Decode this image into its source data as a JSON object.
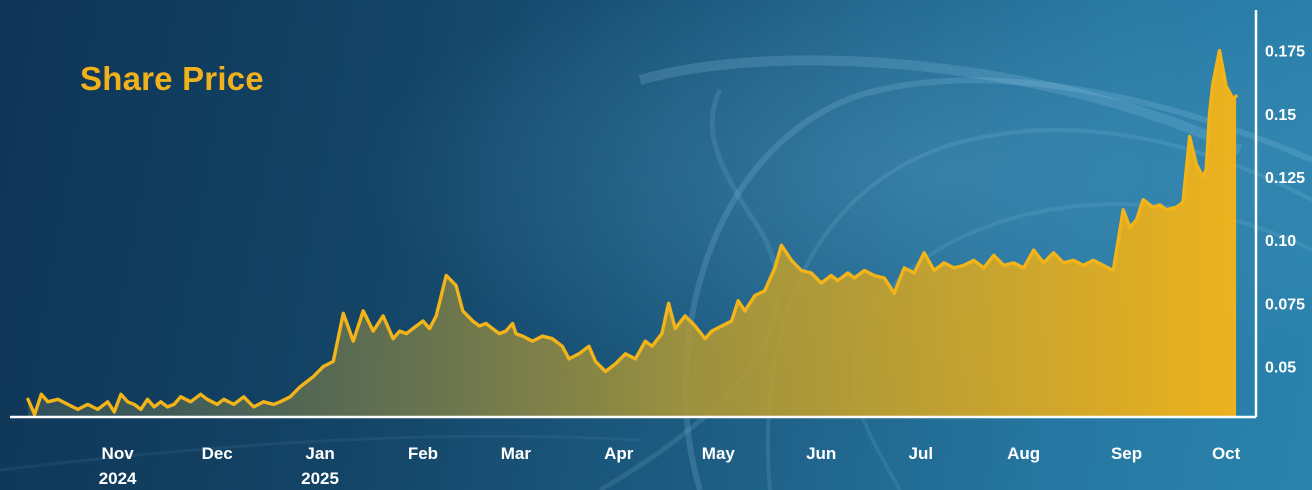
{
  "chart_data": {
    "type": "area",
    "title": "Share Price",
    "xlabel": "",
    "ylabel": "",
    "ylim": [
      0.03,
      0.18
    ],
    "xlim": [
      "2024-10-05",
      "2025-10-10"
    ],
    "y_ticks": [
      {
        "value": 0.05,
        "label": "0.05"
      },
      {
        "value": 0.075,
        "label": "0.075"
      },
      {
        "value": 0.1,
        "label": "0.10"
      },
      {
        "value": 0.125,
        "label": "0.125"
      },
      {
        "value": 0.15,
        "label": "0.15"
      },
      {
        "value": 0.175,
        "label": "0.175"
      }
    ],
    "x_ticks": [
      {
        "date": "2024-11-01",
        "label": "Nov",
        "sublabel": "2024"
      },
      {
        "date": "2024-12-01",
        "label": "Dec",
        "sublabel": ""
      },
      {
        "date": "2025-01-01",
        "label": "Jan",
        "sublabel": "2025"
      },
      {
        "date": "2025-02-01",
        "label": "Feb",
        "sublabel": ""
      },
      {
        "date": "2025-03-01",
        "label": "Mar",
        "sublabel": ""
      },
      {
        "date": "2025-04-01",
        "label": "Apr",
        "sublabel": ""
      },
      {
        "date": "2025-05-01",
        "label": "May",
        "sublabel": ""
      },
      {
        "date": "2025-06-01",
        "label": "Jun",
        "sublabel": ""
      },
      {
        "date": "2025-07-01",
        "label": "Jul",
        "sublabel": ""
      },
      {
        "date": "2025-08-01",
        "label": "Aug",
        "sublabel": ""
      },
      {
        "date": "2025-09-01",
        "label": "Sep",
        "sublabel": ""
      },
      {
        "date": "2025-10-01",
        "label": "Oct",
        "sublabel": ""
      }
    ],
    "grid": false,
    "legend": "none",
    "colors": {
      "line": "#f2b419",
      "fill_start": "#46625e",
      "fill_end": "#f2b319",
      "title": "#f0b21c",
      "axis": "#ffffff",
      "background_start": "#0f3556",
      "background_end": "#2a84ae"
    },
    "series": [
      {
        "x": [
          "2024-10-05",
          "2024-10-07",
          "2024-10-09",
          "2024-10-11",
          "2024-10-14",
          "2024-10-17",
          "2024-10-20",
          "2024-10-23",
          "2024-10-26",
          "2024-10-29",
          "2024-10-31",
          "2024-11-02",
          "2024-11-04",
          "2024-11-06",
          "2024-11-08",
          "2024-11-10",
          "2024-11-12",
          "2024-11-14",
          "2024-11-16",
          "2024-11-18",
          "2024-11-20",
          "2024-11-23",
          "2024-11-26",
          "2024-11-28",
          "2024-12-01",
          "2024-12-03",
          "2024-12-06",
          "2024-12-09",
          "2024-12-12",
          "2024-12-15",
          "2024-12-18",
          "2024-12-20",
          "2024-12-23",
          "2024-12-26",
          "2024-12-28",
          "2024-12-30",
          "2025-01-02",
          "2025-01-05",
          "2025-01-08",
          "2025-01-11",
          "2025-01-14",
          "2025-01-17",
          "2025-01-20",
          "2025-01-23",
          "2025-01-25",
          "2025-01-27",
          "2025-01-30",
          "2025-02-01",
          "2025-02-03",
          "2025-02-05",
          "2025-02-08",
          "2025-02-11",
          "2025-02-13",
          "2025-02-16",
          "2025-02-18",
          "2025-02-20",
          "2025-02-22",
          "2025-02-24",
          "2025-02-26",
          "2025-02-28",
          "2025-03-01",
          "2025-03-03",
          "2025-03-06",
          "2025-03-09",
          "2025-03-12",
          "2025-03-15",
          "2025-03-17",
          "2025-03-20",
          "2025-03-23",
          "2025-03-25",
          "2025-03-28",
          "2025-03-31",
          "2025-04-03",
          "2025-04-06",
          "2025-04-09",
          "2025-04-11",
          "2025-04-14",
          "2025-04-16",
          "2025-04-18",
          "2025-04-21",
          "2025-04-24",
          "2025-04-27",
          "2025-04-29",
          "2025-05-02",
          "2025-05-05",
          "2025-05-07",
          "2025-05-09",
          "2025-05-12",
          "2025-05-15",
          "2025-05-18",
          "2025-05-20",
          "2025-05-23",
          "2025-05-26",
          "2025-05-29",
          "2025-06-01",
          "2025-06-04",
          "2025-06-06",
          "2025-06-09",
          "2025-06-11",
          "2025-06-14",
          "2025-06-17",
          "2025-06-20",
          "2025-06-23",
          "2025-06-26",
          "2025-06-29",
          "2025-07-02",
          "2025-07-05",
          "2025-07-08",
          "2025-07-11",
          "2025-07-14",
          "2025-07-17",
          "2025-07-20",
          "2025-07-23",
          "2025-07-26",
          "2025-07-29",
          "2025-08-01",
          "2025-08-04",
          "2025-08-07",
          "2025-08-10",
          "2025-08-13",
          "2025-08-16",
          "2025-08-19",
          "2025-08-22",
          "2025-08-25",
          "2025-08-28",
          "2025-08-31",
          "2025-09-02",
          "2025-09-04",
          "2025-09-06",
          "2025-09-09",
          "2025-09-11",
          "2025-09-13",
          "2025-09-16",
          "2025-09-18",
          "2025-09-20",
          "2025-09-22",
          "2025-09-24",
          "2025-09-25",
          "2025-09-26",
          "2025-09-27",
          "2025-09-29",
          "2025-10-01",
          "2025-10-03",
          "2025-10-04"
        ],
        "values": [
          0.037,
          0.031,
          0.039,
          0.036,
          0.037,
          0.035,
          0.033,
          0.035,
          0.033,
          0.036,
          0.032,
          0.039,
          0.036,
          0.035,
          0.033,
          0.037,
          0.034,
          0.036,
          0.034,
          0.035,
          0.038,
          0.036,
          0.039,
          0.037,
          0.035,
          0.037,
          0.035,
          0.038,
          0.034,
          0.036,
          0.035,
          0.036,
          0.038,
          0.042,
          0.044,
          0.046,
          0.05,
          0.052,
          0.071,
          0.06,
          0.072,
          0.064,
          0.07,
          0.061,
          0.064,
          0.063,
          0.066,
          0.068,
          0.065,
          0.07,
          0.086,
          0.082,
          0.072,
          0.068,
          0.066,
          0.067,
          0.065,
          0.063,
          0.064,
          0.067,
          0.063,
          0.062,
          0.06,
          0.062,
          0.061,
          0.058,
          0.053,
          0.055,
          0.058,
          0.052,
          0.048,
          0.051,
          0.055,
          0.053,
          0.06,
          0.058,
          0.063,
          0.075,
          0.065,
          0.07,
          0.066,
          0.061,
          0.064,
          0.066,
          0.068,
          0.076,
          0.072,
          0.078,
          0.08,
          0.089,
          0.098,
          0.092,
          0.088,
          0.087,
          0.083,
          0.086,
          0.084,
          0.087,
          0.085,
          0.088,
          0.086,
          0.085,
          0.079,
          0.089,
          0.087,
          0.095,
          0.088,
          0.091,
          0.089,
          0.09,
          0.092,
          0.089,
          0.094,
          0.09,
          0.091,
          0.089,
          0.096,
          0.091,
          0.095,
          0.091,
          0.092,
          0.09,
          0.092,
          0.09,
          0.088,
          0.112,
          0.105,
          0.108,
          0.116,
          0.113,
          0.114,
          0.112,
          0.113,
          0.115,
          0.141,
          0.13,
          0.125,
          0.128,
          0.15,
          0.162,
          0.175,
          0.161,
          0.156,
          0.157
        ]
      }
    ]
  }
}
